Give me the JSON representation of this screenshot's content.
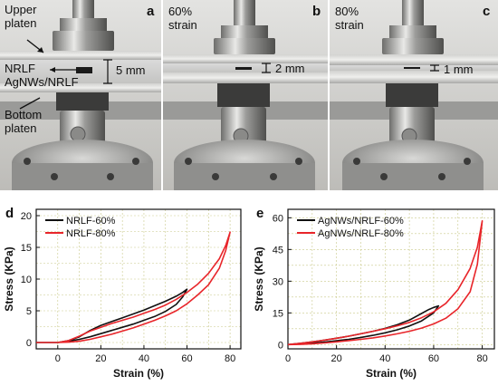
{
  "photos": [
    {
      "letter": "a",
      "labels": {
        "upper": [
          "Upper",
          "platen"
        ],
        "sample_top": "NRLF",
        "sample_bottom": "AgNWs/NRLF",
        "bottom": [
          "Bottom",
          "platen"
        ]
      },
      "measure": "5 mm"
    },
    {
      "letter": "b",
      "strain": [
        "60%",
        "strain"
      ],
      "measure": "2 mm"
    },
    {
      "letter": "c",
      "strain": [
        "80%",
        "strain"
      ],
      "measure": "1 mm"
    }
  ],
  "colors": {
    "series_black": "#111111",
    "series_red": "#e8252a",
    "grid": "#c9c98a"
  },
  "chart_data": [
    {
      "type": "line",
      "panel": "d",
      "xlabel": "Strain (%)",
      "ylabel": "Stress (KPa)",
      "xlim": [
        -10,
        85
      ],
      "ylim": [
        -1,
        21
      ],
      "xticks": [
        0,
        20,
        40,
        60,
        80
      ],
      "yticks": [
        0,
        5,
        10,
        15,
        20
      ],
      "grid": true,
      "legend": "top-left",
      "series": [
        {
          "name": "NRLF-60%",
          "color": "#111111",
          "x": [
            -10,
            0,
            5,
            10,
            15,
            20,
            25,
            30,
            35,
            40,
            45,
            50,
            55,
            58,
            60,
            60,
            58,
            55,
            50,
            45,
            40,
            35,
            30,
            25,
            20,
            15,
            10,
            5,
            0
          ],
          "y": [
            0,
            0,
            0.3,
            0.9,
            1.9,
            2.7,
            3.3,
            3.9,
            4.5,
            5.1,
            5.8,
            6.5,
            7.3,
            7.9,
            8.4,
            8.4,
            7.2,
            6.0,
            4.9,
            4.1,
            3.5,
            2.9,
            2.4,
            1.9,
            1.4,
            0.9,
            0.5,
            0.2,
            0
          ]
        },
        {
          "name": "NRLF-80%",
          "color": "#e8252a",
          "x": [
            -10,
            0,
            5,
            10,
            15,
            20,
            25,
            30,
            35,
            40,
            45,
            50,
            55,
            60,
            65,
            70,
            75,
            78,
            80,
            80,
            78,
            75,
            70,
            65,
            60,
            55,
            50,
            45,
            40,
            35,
            30,
            25,
            20,
            15,
            10,
            5,
            0
          ],
          "y": [
            0,
            0,
            0.3,
            1.0,
            1.8,
            2.4,
            3.0,
            3.5,
            4.0,
            4.6,
            5.2,
            5.9,
            6.8,
            7.9,
            9.2,
            10.9,
            13.2,
            15.3,
            17.4,
            17.4,
            14.5,
            11.7,
            9.1,
            7.5,
            6.1,
            5.0,
            4.2,
            3.5,
            2.9,
            2.3,
            1.8,
            1.3,
            0.9,
            0.5,
            0.2,
            0.05,
            0
          ]
        }
      ]
    },
    {
      "type": "line",
      "panel": "e",
      "xlabel": "Strain (%)",
      "ylabel": "Stress (KPa)",
      "xlim": [
        0,
        85
      ],
      "ylim": [
        -2,
        64
      ],
      "xticks": [
        0,
        20,
        40,
        60,
        80
      ],
      "yticks": [
        0,
        15,
        30,
        45,
        60
      ],
      "grid": true,
      "legend": "top-left",
      "series": [
        {
          "name": "AgNWs/NRLF-60%",
          "color": "#111111",
          "x": [
            0,
            5,
            10,
            15,
            20,
            25,
            30,
            35,
            40,
            45,
            50,
            55,
            58,
            60,
            62,
            62,
            60,
            55,
            50,
            45,
            40,
            35,
            30,
            25,
            20,
            15,
            10,
            5,
            0
          ],
          "y": [
            0,
            0.6,
            1.3,
            2.1,
            3.0,
            4.0,
            5.1,
            6.3,
            7.7,
            9.4,
            11.6,
            14.7,
            16.6,
            17.6,
            18.3,
            18.3,
            15.0,
            11.2,
            8.8,
            7.0,
            5.6,
            4.4,
            3.4,
            2.5,
            1.8,
            1.2,
            0.7,
            0.3,
            0
          ]
        },
        {
          "name": "AgNWs/NRLF-80%",
          "color": "#e8252a",
          "x": [
            0,
            5,
            10,
            15,
            20,
            25,
            30,
            35,
            40,
            45,
            50,
            55,
            60,
            65,
            70,
            75,
            78,
            80,
            80,
            78,
            75,
            70,
            65,
            60,
            55,
            50,
            45,
            40,
            35,
            30,
            25,
            20,
            15,
            10,
            5,
            0
          ],
          "y": [
            0,
            0.6,
            1.3,
            2.1,
            3.0,
            4.0,
            5.1,
            6.3,
            7.5,
            8.9,
            10.5,
            12.7,
            15.5,
            19.5,
            26.0,
            36.0,
            46.0,
            58.5,
            58.5,
            38.0,
            25.0,
            17.0,
            12.5,
            9.8,
            7.8,
            6.3,
            5.1,
            4.1,
            3.2,
            2.5,
            1.9,
            1.3,
            0.8,
            0.4,
            0.1,
            0
          ]
        }
      ]
    }
  ]
}
